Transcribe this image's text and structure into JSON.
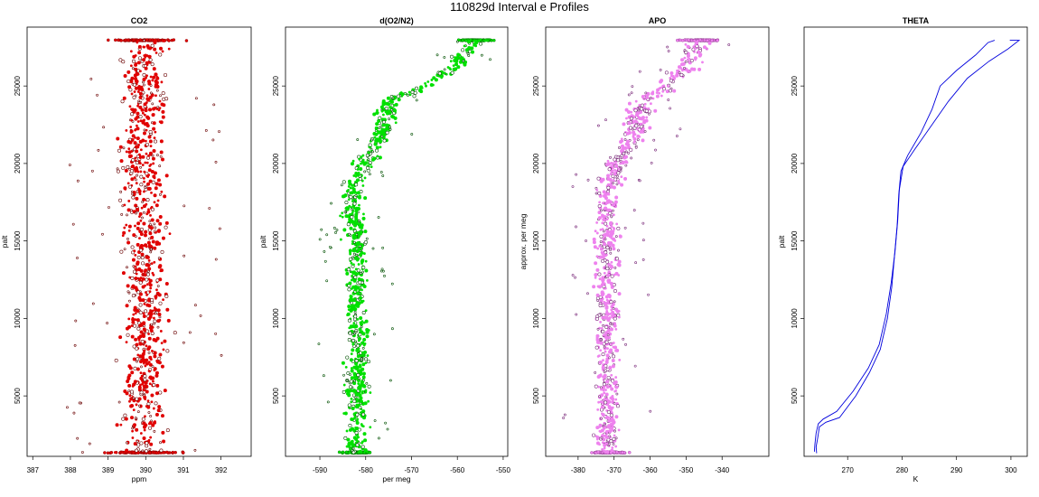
{
  "page": {
    "title": "110829d   Interval e Profiles"
  },
  "chart_data": [
    {
      "id": "co2",
      "type": "scatter",
      "title": "CO2",
      "xlabel": "ppm",
      "ylabel": "palt",
      "xlim": [
        386.85,
        392.8
      ],
      "ylim": [
        1100,
        28800
      ],
      "xticks": [
        387,
        388,
        389,
        390,
        391,
        392
      ],
      "yticks": [
        5000,
        10000,
        15000,
        20000,
        25000
      ],
      "color": "#e00000",
      "edge_color": "#6a0000",
      "spread": 0.55,
      "center_profile": [
        [
          1300,
          389.9
        ],
        [
          5000,
          389.9
        ],
        [
          10000,
          390.0
        ],
        [
          15000,
          390.0
        ],
        [
          20000,
          389.9
        ],
        [
          25000,
          390.0
        ],
        [
          27900,
          390.0
        ]
      ]
    },
    {
      "id": "o2n2",
      "type": "scatter",
      "title": "d(O2/N2)",
      "xlabel": "per meg",
      "ylabel": "palt",
      "xlim": [
        -597.5,
        -549
      ],
      "ylim": [
        1100,
        28800
      ],
      "xticks": [
        -590,
        -580,
        -570,
        -560,
        -550
      ],
      "yticks": [
        5000,
        10000,
        15000,
        20000,
        25000
      ],
      "color": "#00e000",
      "edge_color": "#005000",
      "spread": 2.2,
      "center_profile": [
        [
          1300,
          -582
        ],
        [
          5000,
          -582
        ],
        [
          10000,
          -582
        ],
        [
          15000,
          -582
        ],
        [
          18500,
          -583
        ],
        [
          20000,
          -580
        ],
        [
          22000,
          -576
        ],
        [
          24000,
          -575
        ],
        [
          25000,
          -567
        ],
        [
          26500,
          -560
        ],
        [
          27900,
          -556
        ]
      ]
    },
    {
      "id": "apo",
      "type": "scatter",
      "title": "APO",
      "xlabel": "",
      "ylabel": "approx. per meg",
      "xlim": [
        -389,
        -327
      ],
      "ylim": [
        1100,
        28800
      ],
      "xticks": [
        -380,
        -370,
        -360,
        -350,
        -340
      ],
      "yticks": [
        5000,
        10000,
        15000,
        20000,
        25000
      ],
      "color": "#ee82ee",
      "edge_color": "#7a2a7a",
      "spread": 3.2,
      "center_profile": [
        [
          1300,
          -372
        ],
        [
          5000,
          -372
        ],
        [
          10000,
          -372
        ],
        [
          15000,
          -372
        ],
        [
          18000,
          -372
        ],
        [
          20000,
          -369
        ],
        [
          22000,
          -364
        ],
        [
          24000,
          -362
        ],
        [
          25000,
          -355
        ],
        [
          26500,
          -349
        ],
        [
          27900,
          -346
        ]
      ]
    },
    {
      "id": "theta",
      "type": "line",
      "title": "THETA",
      "xlabel": "K",
      "ylabel": "palt",
      "xlim": [
        262,
        303
      ],
      "ylim": [
        1100,
        28800
      ],
      "xticks": [
        270,
        280,
        290,
        300
      ],
      "yticks": [
        5000,
        10000,
        15000,
        20000,
        25000
      ],
      "color": "#0000dd",
      "series": [
        {
          "points": [
            [
              264.3,
              1300
            ],
            [
              264.2,
              1700
            ],
            [
              264.5,
              2300
            ],
            [
              264.8,
              3000
            ],
            [
              266.0,
              3300
            ],
            [
              268.5,
              3600
            ],
            [
              271.5,
              5000
            ],
            [
              274.0,
              6500
            ],
            [
              276.0,
              8000
            ],
            [
              277.3,
              10000
            ],
            [
              278.1,
              12000
            ],
            [
              278.6,
              14000
            ],
            [
              279.1,
              16000
            ],
            [
              279.4,
              18000
            ],
            [
              279.8,
              19500
            ],
            [
              281.0,
              20500
            ],
            [
              283.5,
              22000
            ],
            [
              285.5,
              23500
            ],
            [
              287.0,
              25000
            ],
            [
              290.0,
              26000
            ],
            [
              293.5,
              27000
            ],
            [
              295.8,
              27800
            ],
            [
              297.0,
              27950
            ]
          ]
        },
        {
          "points": [
            [
              263.9,
              1400
            ],
            [
              264.0,
              1900
            ],
            [
              264.2,
              2600
            ],
            [
              264.6,
              3200
            ],
            [
              265.5,
              3500
            ],
            [
              268.0,
              4000
            ],
            [
              271.0,
              5300
            ],
            [
              273.8,
              6800
            ],
            [
              275.8,
              8300
            ],
            [
              277.1,
              10300
            ],
            [
              278.0,
              12300
            ],
            [
              278.7,
              14300
            ],
            [
              279.2,
              16300
            ],
            [
              279.5,
              18300
            ],
            [
              280.2,
              19800
            ],
            [
              282.5,
              21000
            ],
            [
              285.5,
              22500
            ],
            [
              288.5,
              24000
            ],
            [
              292.0,
              25500
            ],
            [
              296.0,
              26600
            ],
            [
              299.5,
              27400
            ],
            [
              301.5,
              27950
            ],
            [
              299.8,
              27950
            ],
            [
              301.5,
              27950
            ]
          ]
        }
      ]
    }
  ]
}
